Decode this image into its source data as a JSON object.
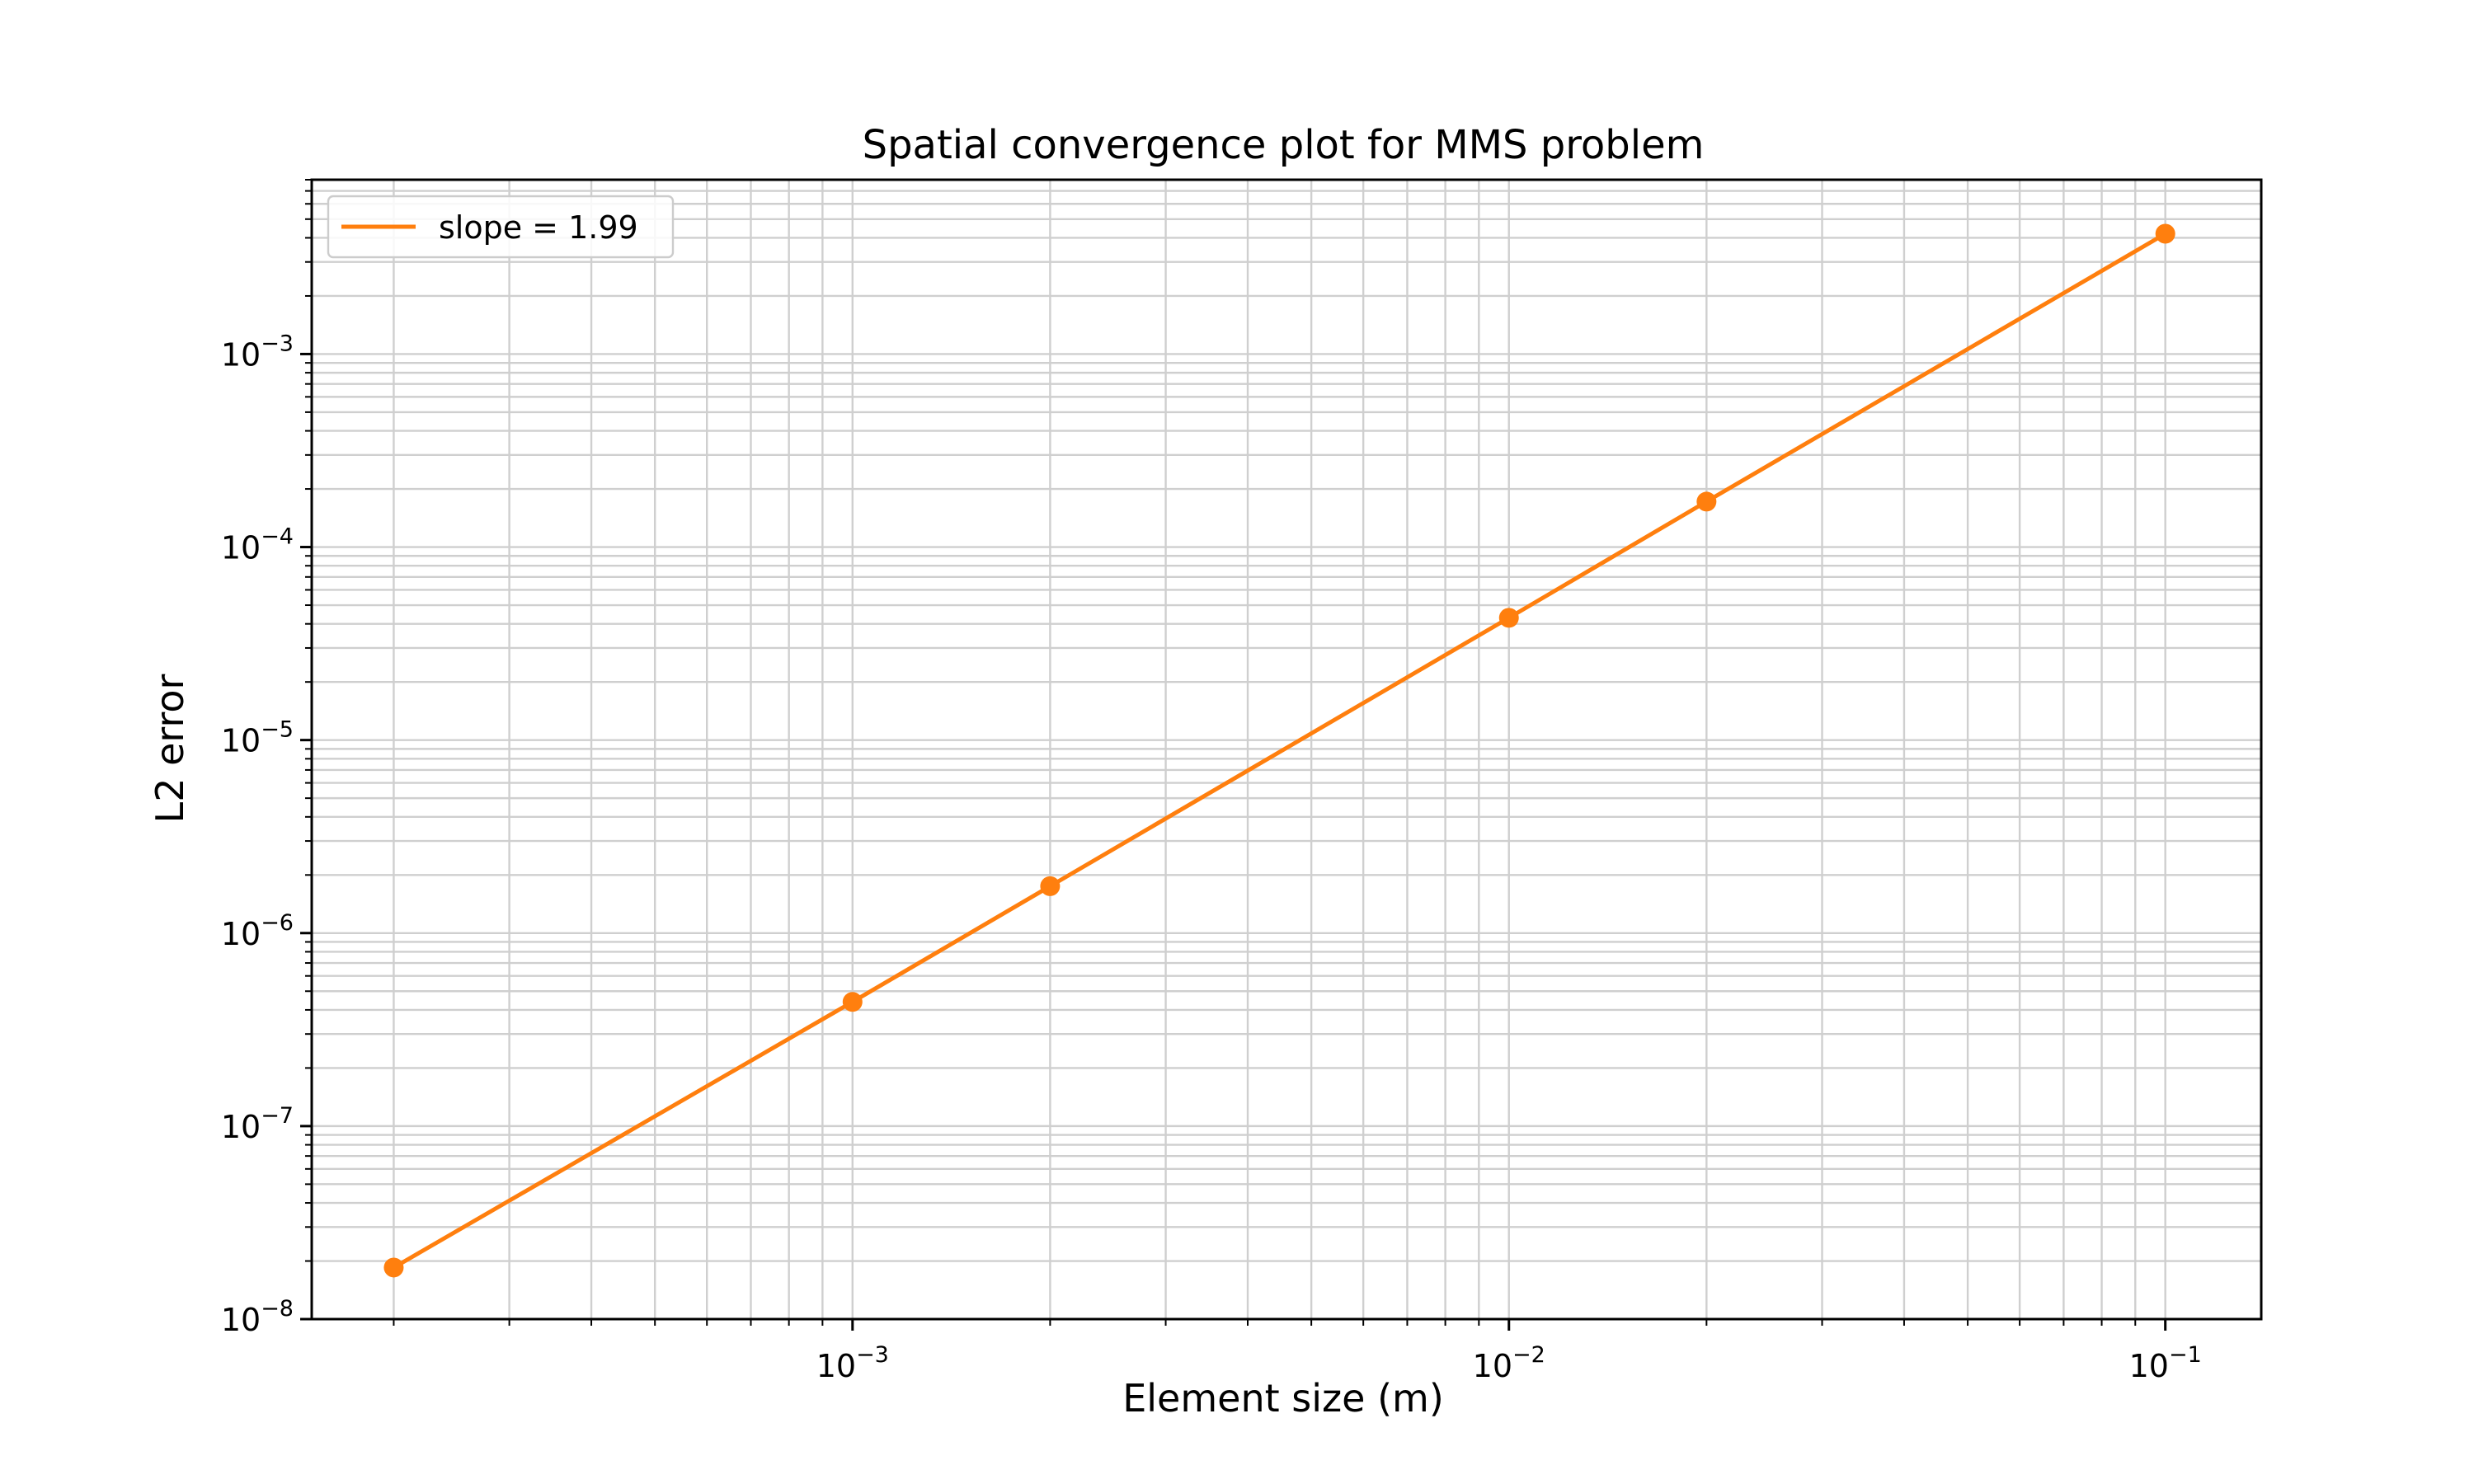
{
  "chart_data": {
    "type": "line",
    "title": "Spatial convergence plot for MMS problem",
    "xlabel": "Element size (m)",
    "ylabel": "L2 error",
    "xscale": "log",
    "yscale": "log",
    "xlim": [
      0.00015,
      0.14
    ],
    "ylim": [
      1e-08,
      0.008
    ],
    "grid": "major and minor",
    "legend_position": "top-left",
    "x_ticks": [
      {
        "value": 0.001,
        "base": "10",
        "exp": "−3"
      },
      {
        "value": 0.01,
        "base": "10",
        "exp": "−2"
      },
      {
        "value": 0.1,
        "base": "10",
        "exp": "−1"
      }
    ],
    "y_ticks": [
      {
        "value": 1e-08,
        "base": "10",
        "exp": "−8"
      },
      {
        "value": 1e-07,
        "base": "10",
        "exp": "−7"
      },
      {
        "value": 1e-06,
        "base": "10",
        "exp": "−6"
      },
      {
        "value": 1e-05,
        "base": "10",
        "exp": "−5"
      },
      {
        "value": 0.0001,
        "base": "10",
        "exp": "−4"
      },
      {
        "value": 0.001,
        "base": "10",
        "exp": "−3"
      }
    ],
    "series": [
      {
        "name": "slope = 1.99",
        "color": "#ff7f0e",
        "marker": "circle",
        "x": [
          0.0002,
          0.001,
          0.002,
          0.01,
          0.02,
          0.1
        ],
        "y": [
          1.85e-08,
          4.4e-07,
          1.75e-06,
          4.3e-05,
          0.000172,
          0.0042
        ]
      }
    ]
  }
}
